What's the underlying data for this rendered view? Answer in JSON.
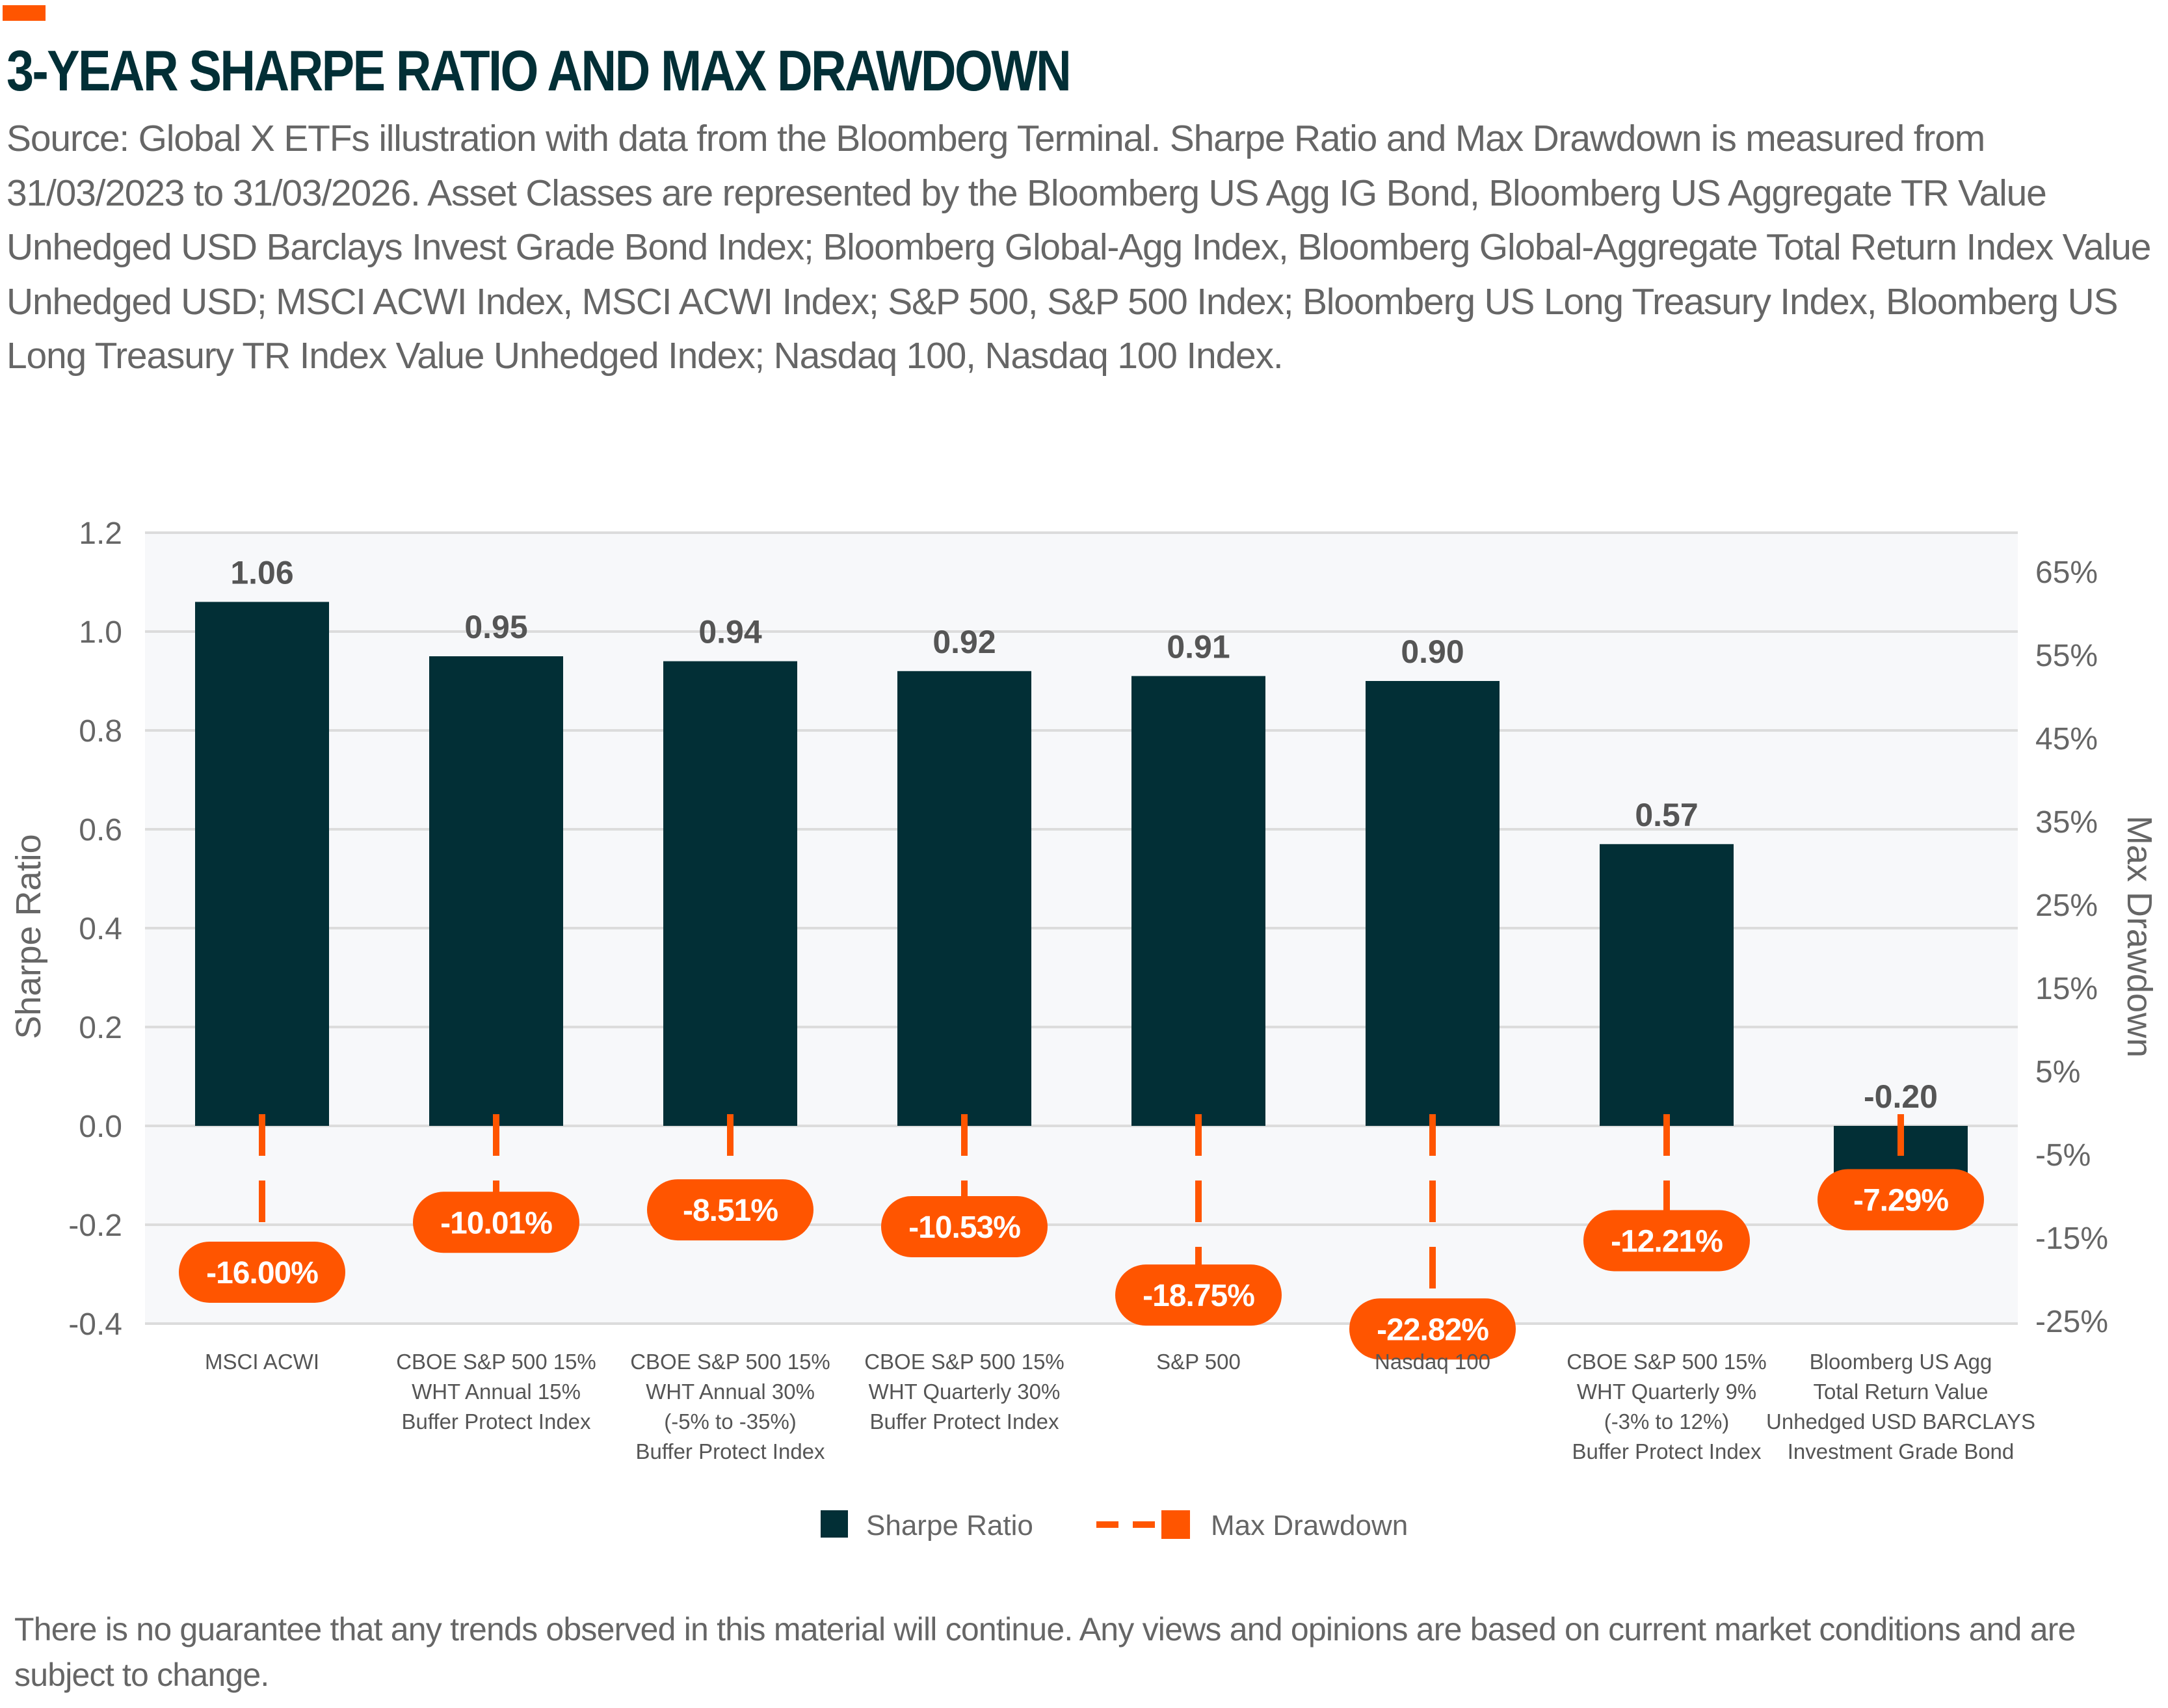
{
  "header": {
    "title": "3-YEAR SHARPE RATIO AND MAX DRAWDOWN",
    "source": "Source: Global X ETFs illustration with data from the Bloomberg Terminal. Sharpe Ratio and Max Drawdown is measured from 31/03/2023 to 31/03/2026. Asset Classes are represented by the Bloomberg US Agg IG Bond, Bloomberg US Aggregate TR Value Unhedged USD Barclays Invest Grade Bond Index; Bloomberg Global-Agg Index, Bloomberg Global-Aggregate Total Return Index Value Unhedged USD; MSCI ACWI Index, MSCI ACWI Index; S&P 500, S&P 500 Index; Bloomberg US Long Treasury Index, Bloomberg US Long Treasury TR Index Value Unhedged Index; Nasdaq 100, Nasdaq 100 Index."
  },
  "footnote": "There is no guarantee that any trends observed in this material will continue. Any views and opinions are based on current market conditions and are subject to change.",
  "colors": {
    "bar": "#022f36",
    "drawdown": "#ff5500",
    "plot_bg": "#f7f8fa",
    "grid": "#dcdcdc",
    "text": "#666666",
    "title": "#022f36"
  },
  "chart_data": {
    "type": "bar",
    "categories": [
      "MSCI ACWI",
      "CBOE S&P 500 15%\nWHT Annual 15%\nBuffer Protect Index",
      "CBOE S&P 500 15%\nWHT Annual 30%\n(-5% to -35%)\nBuffer Protect Index",
      "CBOE S&P 500 15%\nWHT Quarterly 30%\nBuffer Protect Index",
      "S&P 500",
      "Nasdaq 100",
      "CBOE S&P 500 15%\nWHT Quarterly 9%\n(-3% to 12%)\nBuffer Protect Index",
      "Bloomberg US Agg\nTotal Return Value\nUnhedged USD BARCLAYS\nInvestment Grade Bond"
    ],
    "series": [
      {
        "name": "Sharpe Ratio",
        "axis": "left",
        "type": "bar",
        "values": [
          1.06,
          0.95,
          0.94,
          0.92,
          0.91,
          0.9,
          0.57,
          -0.2
        ],
        "labels": [
          "1.06",
          "0.95",
          "0.94",
          "0.92",
          "0.91",
          "0.90",
          "0.57",
          "-0.20"
        ]
      },
      {
        "name": "Max Drawdown",
        "axis": "right",
        "type": "dashed-marker",
        "values": [
          -16.0,
          -10.01,
          -8.51,
          -10.53,
          -18.75,
          -22.82,
          -12.21,
          -7.29
        ],
        "labels": [
          "-16.00%",
          "-10.01%",
          "-8.51%",
          "-10.53%",
          "-18.75%",
          "-22.82%",
          "-12.21%",
          "-7.29%"
        ]
      }
    ],
    "ylabel": "Sharpe Ratio",
    "y2label": "Max Drawdown",
    "ylim": [
      -0.4,
      1.2
    ],
    "yticks": [
      "1.2",
      "1.0",
      "0.8",
      "0.6",
      "0.4",
      "0.2",
      "0.0",
      "-0.2",
      "-0.4"
    ],
    "y2lim": [
      -25.3,
      69.7
    ],
    "y2ticks": [
      "65%",
      "55%",
      "45%",
      "35%",
      "25%",
      "15%",
      "5%",
      "-5%",
      "-15%",
      "-25%"
    ],
    "grid": true,
    "legend": {
      "placement": "bottom",
      "items": [
        "Sharpe Ratio",
        "Max Drawdown"
      ]
    }
  }
}
